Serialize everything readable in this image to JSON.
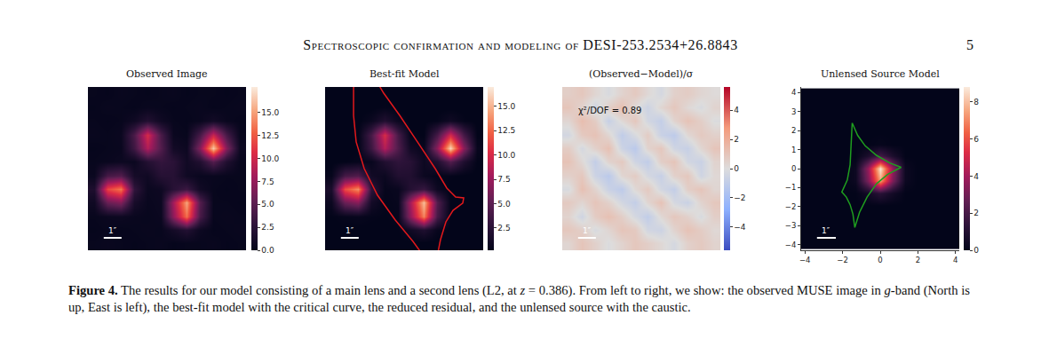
{
  "header": {
    "title": "Spectroscopic confirmation and modeling of DESI-253.2534+26.8843",
    "page": "5"
  },
  "chart_data": [
    {
      "type": "heatmap",
      "title": "Observed Image",
      "color": "rocket",
      "tick_labels": false,
      "x": [
        0.5,
        1.5,
        2.5,
        3.5,
        4.5,
        5.5,
        6.5,
        7.5,
        8.5,
        9.5,
        10.5,
        11.5
      ],
      "y": [
        0.5,
        1.5,
        2.5,
        3.5,
        4.5,
        5.5,
        6.5,
        7.5,
        8.5,
        9.5,
        10.5,
        11.5
      ],
      "xlim": [
        0,
        12
      ],
      "ylim": [
        12,
        0
      ],
      "z": [
        [
          0.3,
          0.2,
          0.4,
          0.3,
          0.2,
          0.3,
          0.4,
          0.2,
          0.3,
          0.3,
          0.2,
          0.3
        ],
        [
          0.2,
          0.4,
          0.3,
          0.2,
          0.4,
          0.3,
          0.2,
          0.3,
          0.4,
          0.2,
          0.3,
          0.4
        ],
        [
          0.3,
          0.2,
          0.3,
          0.8,
          2.0,
          0.8,
          0.3,
          0.2,
          0.4,
          1.0,
          0.4,
          0.2
        ],
        [
          0.4,
          0.3,
          0.5,
          4.2,
          10.3,
          4.2,
          0.5,
          0.3,
          4.0,
          9.7,
          4.0,
          0.3
        ],
        [
          0.2,
          0.3,
          0.4,
          3.6,
          8.7,
          4.6,
          1.0,
          0.6,
          6.8,
          16.4,
          6.8,
          0.6
        ],
        [
          0.3,
          0.4,
          0.6,
          0.5,
          2.1,
          3.0,
          2.5,
          0.9,
          1.9,
          4.7,
          1.9,
          0.3
        ],
        [
          0.5,
          4.0,
          4.6,
          1.2,
          0.8,
          2.2,
          2.2,
          0.8,
          0.4,
          0.4,
          0.3,
          0.3
        ],
        [
          1.7,
          11.7,
          13.6,
          2.8,
          0.5,
          0.7,
          2.3,
          3.4,
          0.9,
          0.3,
          0.2,
          0.3
        ],
        [
          0.8,
          5.7,
          6.7,
          1.3,
          0.4,
          0.6,
          8.1,
          15.1,
          4.7,
          0.3,
          0.3,
          0.2
        ],
        [
          0.3,
          0.5,
          0.6,
          0.4,
          0.3,
          0.5,
          7.2,
          13.3,
          4.1,
          0.3,
          0.4,
          0.3
        ],
        [
          0.2,
          0.3,
          0.2,
          0.3,
          0.4,
          0.3,
          1.1,
          2.0,
          0.6,
          0.2,
          0.3,
          0.4
        ],
        [
          0.3,
          0.4,
          0.3,
          0.2,
          0.3,
          0.4,
          0.2,
          0.3,
          0.3,
          0.4,
          0.2,
          0.3
        ]
      ],
      "colorbar": {
        "range": [
          0,
          17.8
        ],
        "ticks": [
          {
            "value": 0,
            "label": "0.0"
          },
          {
            "value": 2.5,
            "label": "2.5"
          },
          {
            "value": 5,
            "label": "5.0"
          },
          {
            "value": 7.5,
            "label": "7.5"
          },
          {
            "value": 10,
            "label": "10.0"
          },
          {
            "value": 12.5,
            "label": "12.5"
          },
          {
            "value": 15,
            "label": "15.0"
          }
        ]
      },
      "scale_bar": {
        "label": "1″",
        "length": 1.35
      }
    },
    {
      "type": "heatmap",
      "title": "Best-fit Model",
      "color": "rocket",
      "tick_labels": false,
      "x": [
        0.5,
        1.5,
        2.5,
        3.5,
        4.5,
        5.5,
        6.5,
        7.5,
        8.5,
        9.5,
        10.5,
        11.5
      ],
      "y": [
        0.5,
        1.5,
        2.5,
        3.5,
        4.5,
        5.5,
        6.5,
        7.5,
        8.5,
        9.5,
        10.5,
        11.5
      ],
      "xlim": [
        0,
        12
      ],
      "ylim": [
        12,
        0
      ],
      "z": [
        [
          0.1,
          0.1,
          0.1,
          0.1,
          0.1,
          0.1,
          0.1,
          0.1,
          0.1,
          0.1,
          0.1,
          0.1
        ],
        [
          0.1,
          0.1,
          0.1,
          0.1,
          0.3,
          0.1,
          0.1,
          0.1,
          0.1,
          0.1,
          0.1,
          0.1
        ],
        [
          0.1,
          0.1,
          0.1,
          0.7,
          2.0,
          0.7,
          0.1,
          0.1,
          0.3,
          1.0,
          0.3,
          0.1
        ],
        [
          0.1,
          0.1,
          0.2,
          4.0,
          10.0,
          4.0,
          0.3,
          0.2,
          3.9,
          9.8,
          3.9,
          0.2
        ],
        [
          0.1,
          0.1,
          0.2,
          3.5,
          8.5,
          4.4,
          1.0,
          0.5,
          6.9,
          16.2,
          6.9,
          0.5
        ],
        [
          0.1,
          0.2,
          0.4,
          0.5,
          2.0,
          2.8,
          2.4,
          0.8,
          1.9,
          4.6,
          1.9,
          0.2
        ],
        [
          0.4,
          3.9,
          4.5,
          1.1,
          0.7,
          2.0,
          2.0,
          0.7,
          0.3,
          0.3,
          0.1,
          0.1
        ],
        [
          1.6,
          11.5,
          13.8,
          2.7,
          0.4,
          0.6,
          2.2,
          3.2,
          0.8,
          0.1,
          0.1,
          0.1
        ],
        [
          0.7,
          5.6,
          6.8,
          1.2,
          0.3,
          0.5,
          8.0,
          15.3,
          4.6,
          0.2,
          0.1,
          0.1
        ],
        [
          0.2,
          0.4,
          0.5,
          0.3,
          0.2,
          0.4,
          7.1,
          13.4,
          4.0,
          0.2,
          0.1,
          0.1
        ],
        [
          0.1,
          0.1,
          0.1,
          0.1,
          0.1,
          0.2,
          1.0,
          1.9,
          0.5,
          0.1,
          0.1,
          0.1
        ],
        [
          0.1,
          0.1,
          0.1,
          0.1,
          0.1,
          0.1,
          0.1,
          0.1,
          0.1,
          0.1,
          0.1,
          0.1
        ]
      ],
      "colorbar": {
        "range": [
          0.2,
          17.0
        ],
        "ticks": [
          {
            "value": 2.5,
            "label": "2.5"
          },
          {
            "value": 5,
            "label": "5.0"
          },
          {
            "value": 7.5,
            "label": "7.5"
          },
          {
            "value": 10,
            "label": "10.0"
          },
          {
            "value": 12.5,
            "label": "12.5"
          },
          {
            "value": 15,
            "label": "15.0"
          }
        ]
      },
      "critical_curve": {
        "color": "#e3191c",
        "x": [
          2.22,
          2.16,
          2.16,
          2.36,
          2.97,
          3.98,
          5.33,
          6.67,
          7.55,
          8.49,
          8.76,
          9.17,
          9.71,
          10.45,
          10.52,
          9.91,
          9.24,
          8.36,
          7.01,
          5.66,
          4.45,
          3.64
        ],
        "y": [
          -0.85,
          0.13,
          2.09,
          4.04,
          6.0,
          7.96,
          9.78,
          11.35,
          12.52,
          12.52,
          11.22,
          9.91,
          9.07,
          8.54,
          8.15,
          8.09,
          7.43,
          6.0,
          4.04,
          2.09,
          0.46,
          -0.85
        ]
      },
      "scale_bar": {
        "label": "1″",
        "length": 1.35
      }
    },
    {
      "type": "heatmap",
      "title": "(Observed−Model)/σ",
      "color": "coolwarm",
      "tick_labels": false,
      "x": [
        0.5,
        1.5,
        2.5,
        3.5,
        4.5,
        5.5,
        6.5,
        7.5,
        8.5,
        9.5,
        10.5,
        11.5
      ],
      "y": [
        0.5,
        1.5,
        2.5,
        3.5,
        4.5,
        5.5,
        6.5,
        7.5,
        8.5,
        9.5,
        10.5,
        11.5
      ],
      "xlim": [
        0,
        12
      ],
      "ylim": [
        12,
        0
      ],
      "z": [
        [
          0.6,
          0.9,
          0.3,
          -0.2,
          0.4,
          0.8,
          0.2,
          -0.3,
          0.5,
          0.7,
          0.3,
          0.1
        ],
        [
          1.0,
          0.4,
          -0.5,
          0.6,
          1.2,
          0.1,
          -0.6,
          0.3,
          0.9,
          0.2,
          -0.2,
          0.4
        ],
        [
          0.3,
          1.3,
          0.7,
          -0.8,
          0.2,
          0.9,
          -0.4,
          -0.9,
          0.4,
          1.1,
          0.6,
          -0.1
        ],
        [
          -0.4,
          0.8,
          1.1,
          0.3,
          -1.0,
          -0.2,
          0.7,
          -0.7,
          -1.1,
          0.2,
          0.8,
          0.5
        ],
        [
          0.7,
          -0.3,
          0.5,
          1.2,
          -0.6,
          -1.2,
          0.4,
          0.9,
          -0.5,
          -0.8,
          0.3,
          1.0
        ],
        [
          1.1,
          0.2,
          -0.9,
          0.4,
          0.8,
          -0.5,
          -1.0,
          0.6,
          1.0,
          -0.4,
          -0.7,
          0.4
        ],
        [
          0.5,
          0.9,
          -0.6,
          -1.2,
          0.3,
          0.7,
          -0.3,
          -0.8,
          0.5,
          0.9,
          -0.5,
          0.2
        ],
        [
          -0.2,
          1.2,
          0.4,
          -0.7,
          -1.1,
          0.2,
          0.8,
          -0.4,
          -0.9,
          0.6,
          1.0,
          0.3
        ],
        [
          0.8,
          0.3,
          1.0,
          0.5,
          -0.4,
          -0.9,
          0.3,
          1.1,
          -0.3,
          -0.7,
          0.4,
          0.9
        ],
        [
          0.4,
          -0.5,
          0.7,
          1.2,
          0.6,
          -0.3,
          -1.0,
          0.2,
          0.9,
          0.5,
          -0.2,
          0.6
        ],
        [
          0.9,
          0.6,
          -0.2,
          0.3,
          1.0,
          0.8,
          -0.4,
          -0.6,
          0.4,
          1.1,
          0.7,
          0.2
        ],
        [
          0.3,
          1.0,
          0.5,
          -0.1,
          0.4,
          0.9,
          0.6,
          0.2,
          -0.3,
          0.5,
          0.8,
          0.4
        ]
      ],
      "colorbar": {
        "range": [
          -5.6,
          5.6
        ],
        "ticks": [
          -4,
          -2,
          0,
          2,
          4
        ]
      },
      "annotation": "χ²/DOF = 0.89",
      "scale_bar": {
        "label": "1″",
        "length": 1.35
      }
    },
    {
      "type": "heatmap",
      "title": "Unlensed Source Model",
      "color": "rocket",
      "x": [
        -3.9,
        -3.25,
        -2.6,
        -1.95,
        -1.3,
        -0.65,
        0,
        0.65,
        1.3,
        1.95,
        2.6,
        3.25,
        3.9
      ],
      "y": [
        -3.9,
        -3.25,
        -2.6,
        -1.95,
        -1.3,
        -0.65,
        0,
        0.65,
        1.3,
        1.95,
        2.6,
        3.25,
        3.9
      ],
      "xlim": [
        -4.2,
        4.2
      ],
      "ylim": [
        -4.3,
        4.3
      ],
      "xticks": [
        -4,
        -2,
        0,
        2,
        4
      ],
      "yticks": [
        -4,
        -3,
        -2,
        -1,
        0,
        1,
        2,
        3,
        4
      ],
      "z": [
        [
          0,
          0,
          0,
          0,
          0,
          0,
          0,
          0,
          0,
          0,
          0,
          0,
          0
        ],
        [
          0,
          0,
          0,
          0,
          0,
          0,
          0,
          0,
          0,
          0,
          0,
          0,
          0
        ],
        [
          0,
          0,
          0,
          0,
          0,
          0,
          0,
          0,
          0,
          0,
          0,
          0,
          0
        ],
        [
          0,
          0,
          0,
          0,
          0,
          0,
          0,
          0,
          0,
          0,
          0,
          0,
          0
        ],
        [
          0,
          0,
          0,
          0,
          0,
          0.5,
          1.2,
          0.5,
          0,
          0,
          0,
          0,
          0
        ],
        [
          0,
          0,
          0,
          0,
          0.3,
          3.2,
          7.4,
          3.2,
          0.3,
          0,
          0,
          0,
          0
        ],
        [
          0,
          0,
          0,
          0,
          0.3,
          3.7,
          8.7,
          3.7,
          0.3,
          0,
          0,
          0,
          0
        ],
        [
          0,
          0,
          0,
          0,
          0,
          0.8,
          1.9,
          0.8,
          0,
          0,
          0,
          0,
          0
        ],
        [
          0,
          0,
          0,
          0,
          0,
          0,
          0.1,
          0,
          0,
          0,
          0,
          0,
          0
        ],
        [
          0,
          0,
          0,
          0,
          0,
          0,
          0,
          0,
          0,
          0,
          0,
          0,
          0
        ],
        [
          0,
          0,
          0,
          0,
          0,
          0,
          0,
          0,
          0,
          0,
          0,
          0,
          0
        ],
        [
          0,
          0,
          0,
          0,
          0,
          0,
          0,
          0,
          0,
          0,
          0,
          0,
          0
        ],
        [
          0,
          0,
          0,
          0,
          0,
          0,
          0,
          0,
          0,
          0,
          0,
          0,
          0
        ]
      ],
      "colorbar": {
        "range": [
          0,
          8.8
        ],
        "ticks": [
          0,
          2,
          4,
          6,
          8
        ]
      },
      "caustic": {
        "color": "#1f9e1f",
        "x": [
          -1.49,
          -1.2,
          -0.8,
          -0.2,
          0.5,
          1.11,
          0.4,
          -0.2,
          -0.7,
          -1.1,
          -1.35,
          -1.45,
          -1.6,
          -1.8,
          -2.04,
          -1.75,
          -1.6,
          -1.55,
          -1.5,
          -1.49
        ],
        "y": [
          2.41,
          1.75,
          1.2,
          0.7,
          0.3,
          0.07,
          -0.3,
          -0.8,
          -1.5,
          -2.3,
          -3.1,
          -2.4,
          -1.9,
          -1.5,
          -1.23,
          -0.6,
          0.2,
          1.2,
          1.9,
          2.41
        ]
      },
      "scale_bar": {
        "label": "1″",
        "length": 1
      }
    }
  ],
  "caption": {
    "label": "Figure 4.",
    "parts": [
      {
        "text": "The results for our model consisting of a main lens and a second lens (L2, at "
      },
      {
        "text": "z",
        "italic": true
      },
      {
        "text": " = 0.386). From left to right, we show: the observed MUSE image in "
      },
      {
        "text": "g",
        "italic": true
      },
      {
        "text": "-band (North is up, East is left), the best-fit model with the critical curve, the reduced residual, and the unlensed source with the caustic."
      }
    ]
  }
}
